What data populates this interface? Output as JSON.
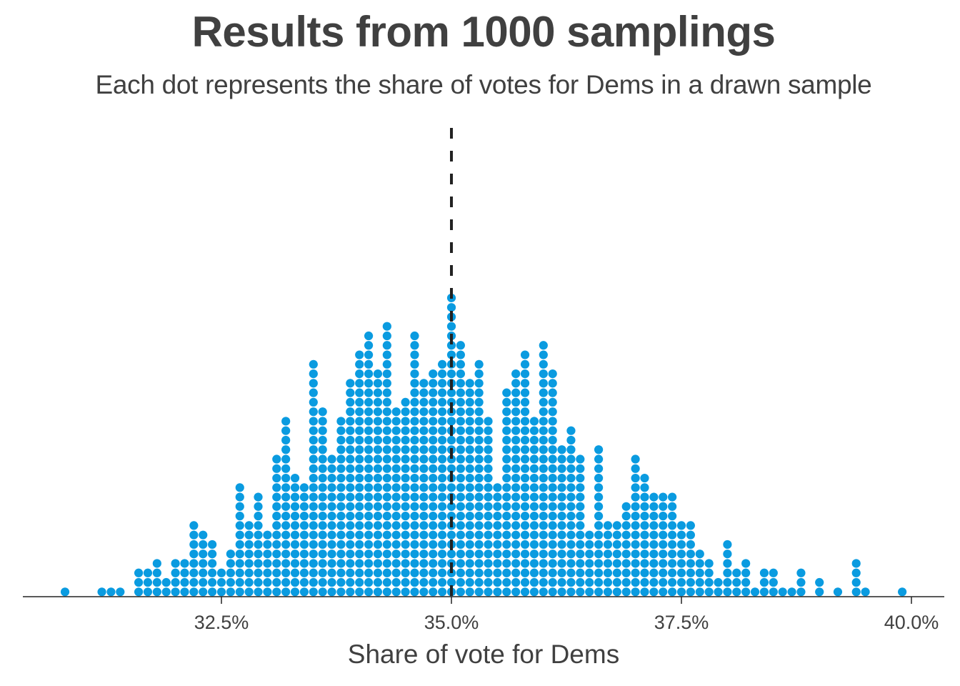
{
  "chart_data": {
    "type": "scatter",
    "subtype": "dot-plot",
    "title": "Results from 1000 samplings",
    "subtitle": "Each dot represents the share of votes for Dems in a drawn sample",
    "xlabel": "Share of vote for Dems",
    "ylabel": "",
    "xlim": [
      30.6,
      40.35
    ],
    "x_ticks": [
      32.5,
      35.0,
      37.5,
      40.0
    ],
    "x_tick_labels": [
      "32.5%",
      "35.0%",
      "37.5%",
      "40.0%"
    ],
    "reference_line": {
      "x": 35.0,
      "style": "dashed",
      "color": "#222222"
    },
    "dot_color": "#0a9be0",
    "bin_width": 0.1,
    "total_samples": 1000,
    "grid": false,
    "legend": "none",
    "bins": [
      {
        "x": 30.8,
        "count": 1
      },
      {
        "x": 31.2,
        "count": 1
      },
      {
        "x": 31.3,
        "count": 1
      },
      {
        "x": 31.4,
        "count": 1
      },
      {
        "x": 31.6,
        "count": 3
      },
      {
        "x": 31.7,
        "count": 3
      },
      {
        "x": 31.8,
        "count": 4
      },
      {
        "x": 31.9,
        "count": 2
      },
      {
        "x": 32.0,
        "count": 4
      },
      {
        "x": 32.1,
        "count": 4
      },
      {
        "x": 32.2,
        "count": 8
      },
      {
        "x": 32.3,
        "count": 7
      },
      {
        "x": 32.4,
        "count": 6
      },
      {
        "x": 32.5,
        "count": 3
      },
      {
        "x": 32.6,
        "count": 5
      },
      {
        "x": 32.7,
        "count": 12
      },
      {
        "x": 32.8,
        "count": 8
      },
      {
        "x": 32.9,
        "count": 11
      },
      {
        "x": 33.0,
        "count": 7
      },
      {
        "x": 33.1,
        "count": 15
      },
      {
        "x": 33.2,
        "count": 19
      },
      {
        "x": 33.3,
        "count": 13
      },
      {
        "x": 33.4,
        "count": 12
      },
      {
        "x": 33.5,
        "count": 25
      },
      {
        "x": 33.6,
        "count": 20
      },
      {
        "x": 33.7,
        "count": 15
      },
      {
        "x": 33.8,
        "count": 19
      },
      {
        "x": 33.9,
        "count": 23
      },
      {
        "x": 34.0,
        "count": 26
      },
      {
        "x": 34.1,
        "count": 28
      },
      {
        "x": 34.2,
        "count": 24
      },
      {
        "x": 34.3,
        "count": 29
      },
      {
        "x": 34.4,
        "count": 20
      },
      {
        "x": 34.5,
        "count": 21
      },
      {
        "x": 34.6,
        "count": 28
      },
      {
        "x": 34.7,
        "count": 23
      },
      {
        "x": 34.8,
        "count": 24
      },
      {
        "x": 34.9,
        "count": 25
      },
      {
        "x": 35.0,
        "count": 32
      },
      {
        "x": 35.1,
        "count": 27
      },
      {
        "x": 35.2,
        "count": 23
      },
      {
        "x": 35.3,
        "count": 25
      },
      {
        "x": 35.4,
        "count": 19
      },
      {
        "x": 35.5,
        "count": 12
      },
      {
        "x": 35.6,
        "count": 22
      },
      {
        "x": 35.7,
        "count": 24
      },
      {
        "x": 35.8,
        "count": 26
      },
      {
        "x": 35.9,
        "count": 19
      },
      {
        "x": 36.0,
        "count": 27
      },
      {
        "x": 36.1,
        "count": 24
      },
      {
        "x": 36.2,
        "count": 16
      },
      {
        "x": 36.3,
        "count": 18
      },
      {
        "x": 36.4,
        "count": 15
      },
      {
        "x": 36.5,
        "count": 7
      },
      {
        "x": 36.6,
        "count": 16
      },
      {
        "x": 36.7,
        "count": 8
      },
      {
        "x": 36.8,
        "count": 8
      },
      {
        "x": 36.9,
        "count": 10
      },
      {
        "x": 37.0,
        "count": 15
      },
      {
        "x": 37.1,
        "count": 13
      },
      {
        "x": 37.2,
        "count": 11
      },
      {
        "x": 37.3,
        "count": 11
      },
      {
        "x": 37.4,
        "count": 11
      },
      {
        "x": 37.5,
        "count": 8
      },
      {
        "x": 37.6,
        "count": 8
      },
      {
        "x": 37.7,
        "count": 5
      },
      {
        "x": 37.8,
        "count": 4
      },
      {
        "x": 37.9,
        "count": 2
      },
      {
        "x": 38.0,
        "count": 6
      },
      {
        "x": 38.1,
        "count": 3
      },
      {
        "x": 38.2,
        "count": 4
      },
      {
        "x": 38.3,
        "count": 1
      },
      {
        "x": 38.4,
        "count": 3
      },
      {
        "x": 38.5,
        "count": 3
      },
      {
        "x": 38.6,
        "count": 1
      },
      {
        "x": 38.7,
        "count": 1
      },
      {
        "x": 38.8,
        "count": 3
      },
      {
        "x": 39.0,
        "count": 2
      },
      {
        "x": 39.2,
        "count": 1
      },
      {
        "x": 39.4,
        "count": 4
      },
      {
        "x": 39.5,
        "count": 1
      },
      {
        "x": 39.9,
        "count": 1
      }
    ]
  }
}
